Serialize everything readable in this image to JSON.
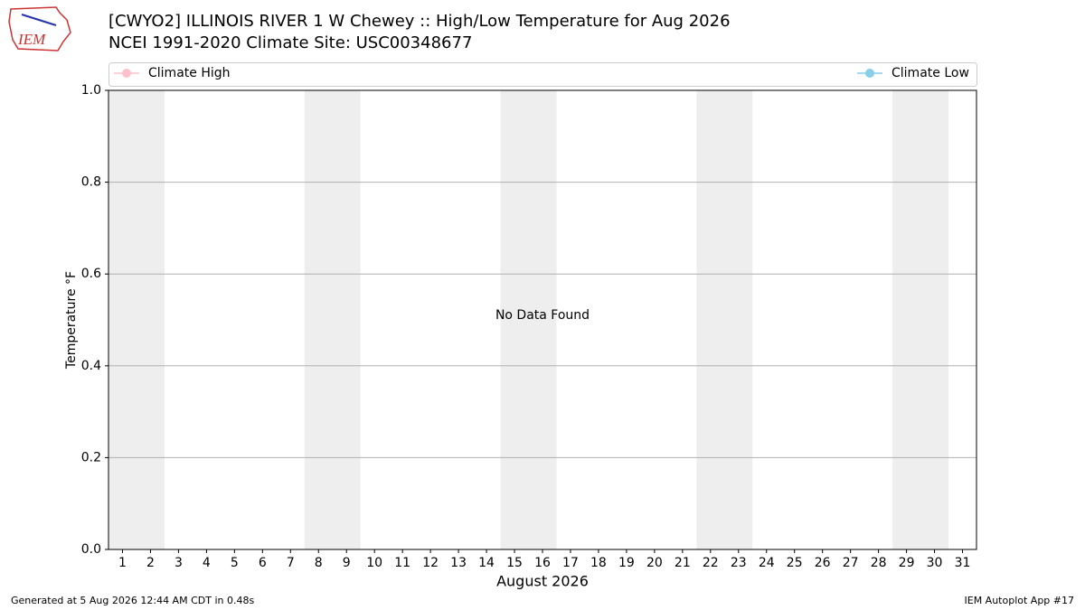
{
  "logo_text": "IEM",
  "footer": {
    "left": "Generated at 5 Aug 2026 12:44 AM CDT in 0.48s",
    "right": "IEM Autoplot App #17"
  },
  "chart_data": {
    "type": "line",
    "title": "[CWYO2] ILLINOIS RIVER 1 W Chewey :: High/Low Temperature for Aug 2026",
    "subtitle": "NCEI 1991-2020 Climate Site: USC00348677",
    "xlabel": "August 2026",
    "ylabel": "Temperature °F",
    "annotation": "No Data Found",
    "x": [],
    "series": [
      {
        "name": "Climate High",
        "color": "#ffc0cb",
        "values": []
      },
      {
        "name": "Climate Low",
        "color": "#87ceeb",
        "values": []
      }
    ],
    "xlim": [
      0.5,
      31.5
    ],
    "xticks": [
      1,
      2,
      3,
      4,
      5,
      6,
      7,
      8,
      9,
      10,
      11,
      12,
      13,
      14,
      15,
      16,
      17,
      18,
      19,
      20,
      21,
      22,
      23,
      24,
      25,
      26,
      27,
      28,
      29,
      30,
      31
    ],
    "ylim": [
      0,
      1
    ],
    "yticks": [
      {
        "value": 0,
        "label": "0.0"
      },
      0.2,
      0.4,
      0.6,
      0.8,
      {
        "value": 1,
        "label": "1.0"
      }
    ],
    "grid": true,
    "bands": [
      [
        0.5,
        2.5
      ],
      [
        7.5,
        9.5
      ],
      [
        14.5,
        16.5
      ],
      [
        21.5,
        23.5
      ],
      [
        28.5,
        30.5
      ]
    ],
    "band_color": "#eeeeee"
  }
}
